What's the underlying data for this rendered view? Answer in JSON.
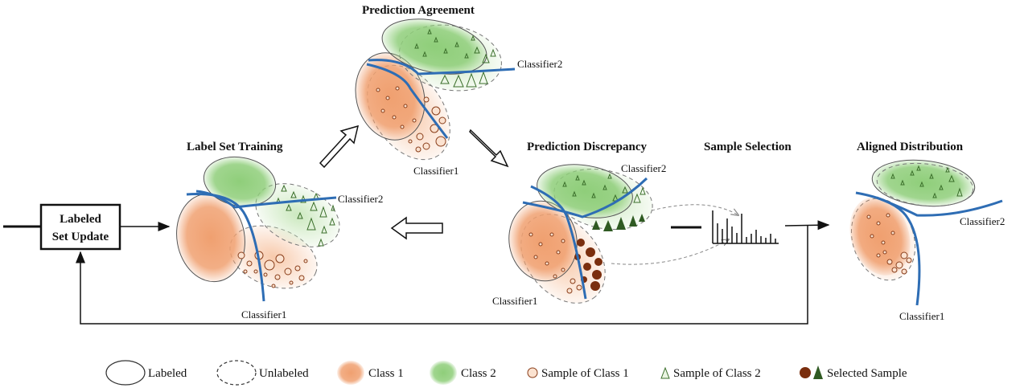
{
  "titles": {
    "label_set_training": "Label Set Training",
    "prediction_agreement": "Prediction Agreement",
    "prediction_discrepancy": "Prediction Discrepancy",
    "sample_selection": "Sample Selection",
    "aligned_distribution": "Aligned Distribution"
  },
  "classifier1": "Classifier1",
  "classifier2": "Classifier2",
  "update_box": {
    "line1": "Labeled",
    "line2": "Set Update"
  },
  "legend": {
    "labeled": "Labeled",
    "unlabeled": "Unlabeled",
    "class1": "Class 1",
    "class2": "Class 2",
    "sample_class1": "Sample of Class 1",
    "sample_class2": "Sample of Class 2",
    "selected": "Selected Sample"
  },
  "colors": {
    "class1": "#f0a070",
    "class2": "#8fce7a",
    "classifier_line": "#2e6db4",
    "selected_circle": "#7a2e0e",
    "selected_triangle": "#2f5a22"
  }
}
